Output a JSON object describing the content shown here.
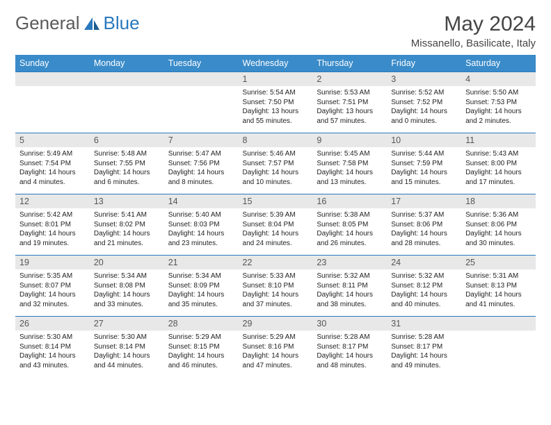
{
  "brand": {
    "part1": "General",
    "part2": "Blue"
  },
  "title": "May 2024",
  "location": "Missanello, Basilicate, Italy",
  "colors": {
    "header_bg": "#3a8bc9",
    "row_divider": "#2a78bd",
    "daynum_bg": "#e8e8e8",
    "text": "#222222",
    "title_text": "#444444"
  },
  "weekdays": [
    "Sunday",
    "Monday",
    "Tuesday",
    "Wednesday",
    "Thursday",
    "Friday",
    "Saturday"
  ],
  "weeks": [
    {
      "nums": [
        "",
        "",
        "",
        "1",
        "2",
        "3",
        "4"
      ],
      "cells": [
        null,
        null,
        null,
        {
          "sr": "Sunrise: 5:54 AM",
          "ss": "Sunset: 7:50 PM",
          "d1": "Daylight: 13 hours",
          "d2": "and 55 minutes."
        },
        {
          "sr": "Sunrise: 5:53 AM",
          "ss": "Sunset: 7:51 PM",
          "d1": "Daylight: 13 hours",
          "d2": "and 57 minutes."
        },
        {
          "sr": "Sunrise: 5:52 AM",
          "ss": "Sunset: 7:52 PM",
          "d1": "Daylight: 14 hours",
          "d2": "and 0 minutes."
        },
        {
          "sr": "Sunrise: 5:50 AM",
          "ss": "Sunset: 7:53 PM",
          "d1": "Daylight: 14 hours",
          "d2": "and 2 minutes."
        }
      ]
    },
    {
      "nums": [
        "5",
        "6",
        "7",
        "8",
        "9",
        "10",
        "11"
      ],
      "cells": [
        {
          "sr": "Sunrise: 5:49 AM",
          "ss": "Sunset: 7:54 PM",
          "d1": "Daylight: 14 hours",
          "d2": "and 4 minutes."
        },
        {
          "sr": "Sunrise: 5:48 AM",
          "ss": "Sunset: 7:55 PM",
          "d1": "Daylight: 14 hours",
          "d2": "and 6 minutes."
        },
        {
          "sr": "Sunrise: 5:47 AM",
          "ss": "Sunset: 7:56 PM",
          "d1": "Daylight: 14 hours",
          "d2": "and 8 minutes."
        },
        {
          "sr": "Sunrise: 5:46 AM",
          "ss": "Sunset: 7:57 PM",
          "d1": "Daylight: 14 hours",
          "d2": "and 10 minutes."
        },
        {
          "sr": "Sunrise: 5:45 AM",
          "ss": "Sunset: 7:58 PM",
          "d1": "Daylight: 14 hours",
          "d2": "and 13 minutes."
        },
        {
          "sr": "Sunrise: 5:44 AM",
          "ss": "Sunset: 7:59 PM",
          "d1": "Daylight: 14 hours",
          "d2": "and 15 minutes."
        },
        {
          "sr": "Sunrise: 5:43 AM",
          "ss": "Sunset: 8:00 PM",
          "d1": "Daylight: 14 hours",
          "d2": "and 17 minutes."
        }
      ]
    },
    {
      "nums": [
        "12",
        "13",
        "14",
        "15",
        "16",
        "17",
        "18"
      ],
      "cells": [
        {
          "sr": "Sunrise: 5:42 AM",
          "ss": "Sunset: 8:01 PM",
          "d1": "Daylight: 14 hours",
          "d2": "and 19 minutes."
        },
        {
          "sr": "Sunrise: 5:41 AM",
          "ss": "Sunset: 8:02 PM",
          "d1": "Daylight: 14 hours",
          "d2": "and 21 minutes."
        },
        {
          "sr": "Sunrise: 5:40 AM",
          "ss": "Sunset: 8:03 PM",
          "d1": "Daylight: 14 hours",
          "d2": "and 23 minutes."
        },
        {
          "sr": "Sunrise: 5:39 AM",
          "ss": "Sunset: 8:04 PM",
          "d1": "Daylight: 14 hours",
          "d2": "and 24 minutes."
        },
        {
          "sr": "Sunrise: 5:38 AM",
          "ss": "Sunset: 8:05 PM",
          "d1": "Daylight: 14 hours",
          "d2": "and 26 minutes."
        },
        {
          "sr": "Sunrise: 5:37 AM",
          "ss": "Sunset: 8:06 PM",
          "d1": "Daylight: 14 hours",
          "d2": "and 28 minutes."
        },
        {
          "sr": "Sunrise: 5:36 AM",
          "ss": "Sunset: 8:06 PM",
          "d1": "Daylight: 14 hours",
          "d2": "and 30 minutes."
        }
      ]
    },
    {
      "nums": [
        "19",
        "20",
        "21",
        "22",
        "23",
        "24",
        "25"
      ],
      "cells": [
        {
          "sr": "Sunrise: 5:35 AM",
          "ss": "Sunset: 8:07 PM",
          "d1": "Daylight: 14 hours",
          "d2": "and 32 minutes."
        },
        {
          "sr": "Sunrise: 5:34 AM",
          "ss": "Sunset: 8:08 PM",
          "d1": "Daylight: 14 hours",
          "d2": "and 33 minutes."
        },
        {
          "sr": "Sunrise: 5:34 AM",
          "ss": "Sunset: 8:09 PM",
          "d1": "Daylight: 14 hours",
          "d2": "and 35 minutes."
        },
        {
          "sr": "Sunrise: 5:33 AM",
          "ss": "Sunset: 8:10 PM",
          "d1": "Daylight: 14 hours",
          "d2": "and 37 minutes."
        },
        {
          "sr": "Sunrise: 5:32 AM",
          "ss": "Sunset: 8:11 PM",
          "d1": "Daylight: 14 hours",
          "d2": "and 38 minutes."
        },
        {
          "sr": "Sunrise: 5:32 AM",
          "ss": "Sunset: 8:12 PM",
          "d1": "Daylight: 14 hours",
          "d2": "and 40 minutes."
        },
        {
          "sr": "Sunrise: 5:31 AM",
          "ss": "Sunset: 8:13 PM",
          "d1": "Daylight: 14 hours",
          "d2": "and 41 minutes."
        }
      ]
    },
    {
      "nums": [
        "26",
        "27",
        "28",
        "29",
        "30",
        "31",
        ""
      ],
      "cells": [
        {
          "sr": "Sunrise: 5:30 AM",
          "ss": "Sunset: 8:14 PM",
          "d1": "Daylight: 14 hours",
          "d2": "and 43 minutes."
        },
        {
          "sr": "Sunrise: 5:30 AM",
          "ss": "Sunset: 8:14 PM",
          "d1": "Daylight: 14 hours",
          "d2": "and 44 minutes."
        },
        {
          "sr": "Sunrise: 5:29 AM",
          "ss": "Sunset: 8:15 PM",
          "d1": "Daylight: 14 hours",
          "d2": "and 46 minutes."
        },
        {
          "sr": "Sunrise: 5:29 AM",
          "ss": "Sunset: 8:16 PM",
          "d1": "Daylight: 14 hours",
          "d2": "and 47 minutes."
        },
        {
          "sr": "Sunrise: 5:28 AM",
          "ss": "Sunset: 8:17 PM",
          "d1": "Daylight: 14 hours",
          "d2": "and 48 minutes."
        },
        {
          "sr": "Sunrise: 5:28 AM",
          "ss": "Sunset: 8:17 PM",
          "d1": "Daylight: 14 hours",
          "d2": "and 49 minutes."
        },
        null
      ]
    }
  ]
}
